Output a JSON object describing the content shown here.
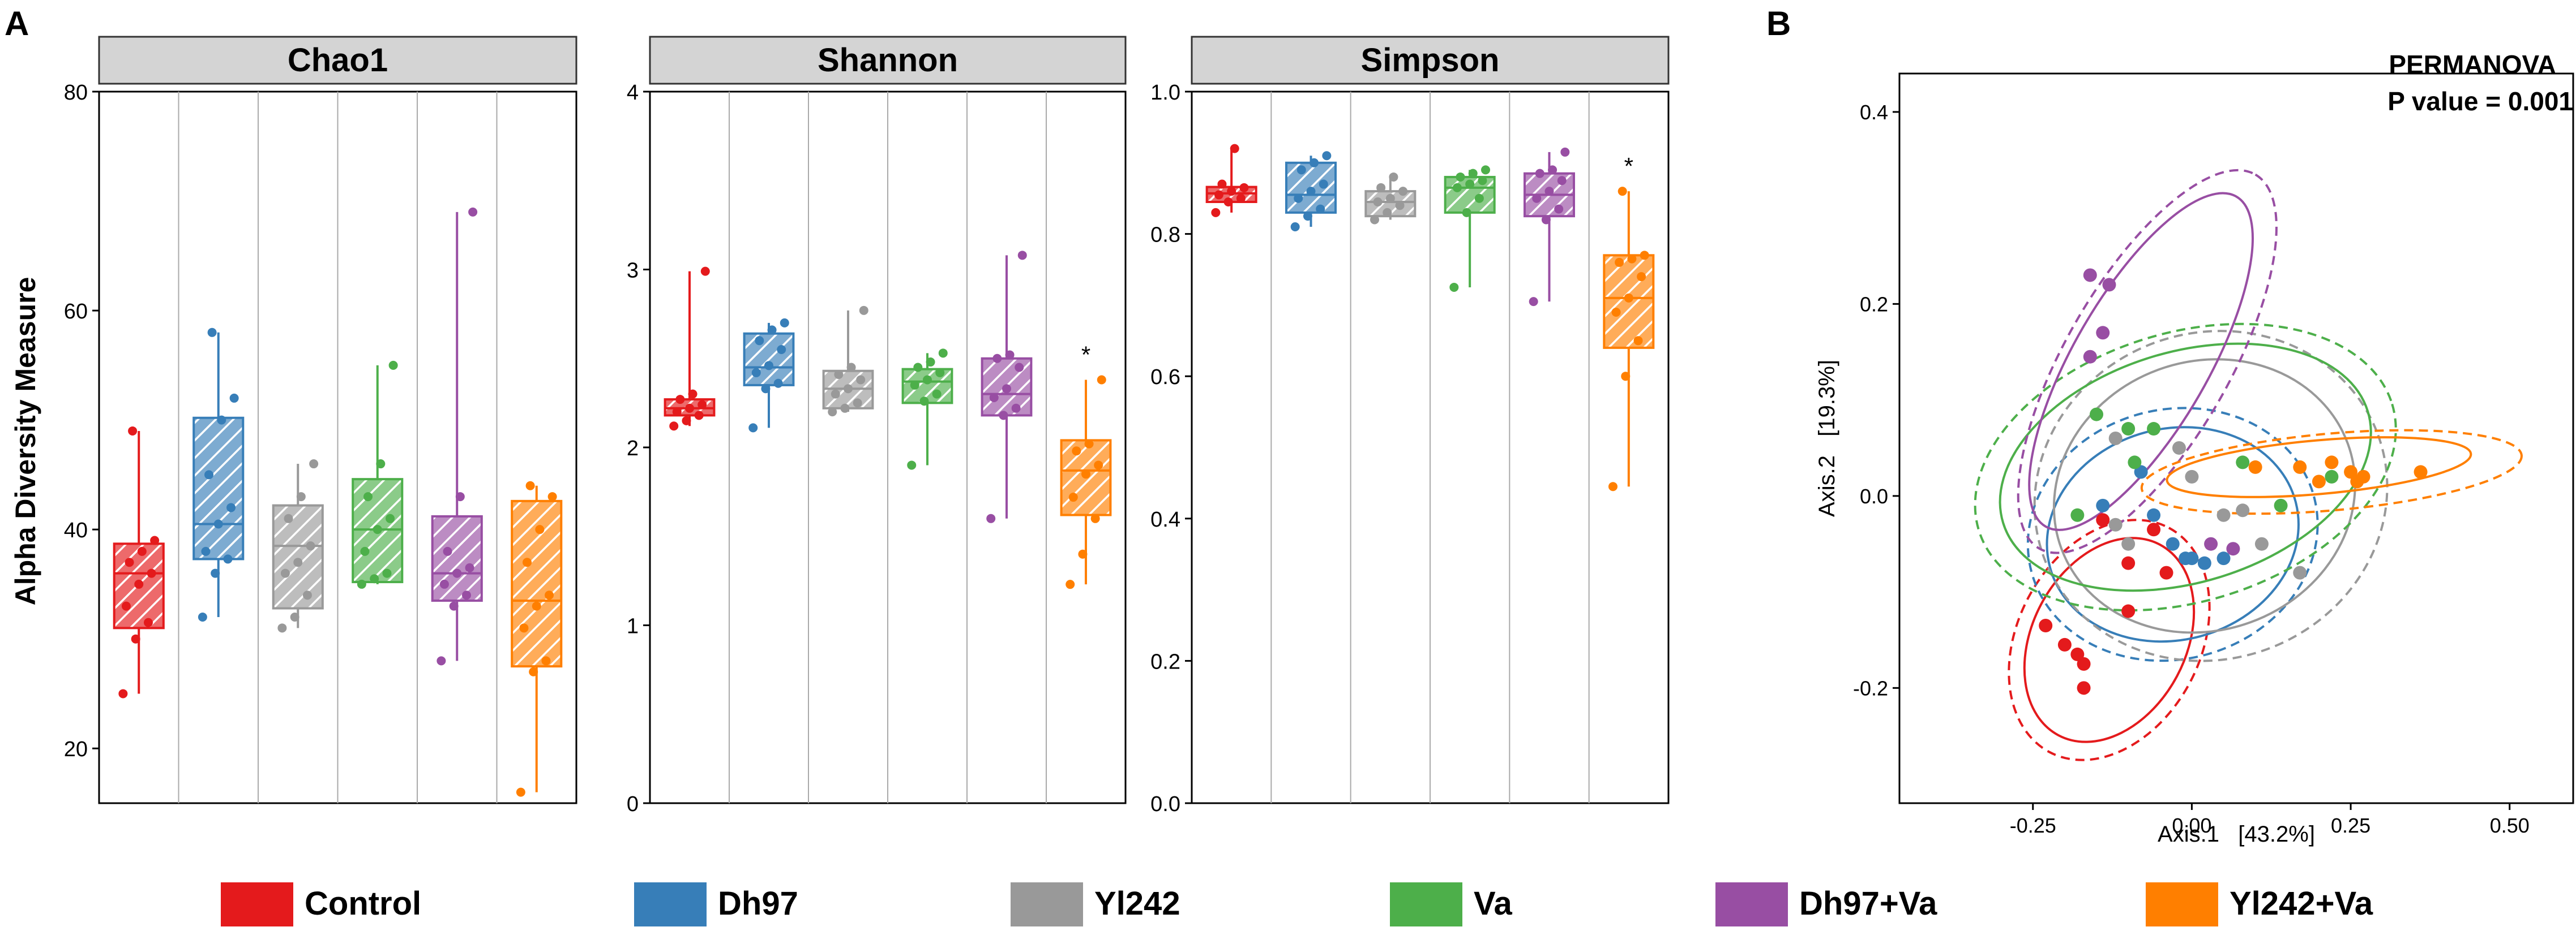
{
  "chart_data": [
    {
      "type": "box",
      "panel_label": "A",
      "title": "Chao1",
      "ylabel": "Alpha Diversity Measure",
      "ylim": [
        15,
        80
      ],
      "yticks": [
        20,
        40,
        60,
        80
      ],
      "groups": [
        {
          "name": "Control",
          "min": 25,
          "q1": 31,
          "median": 36,
          "q3": 38.7,
          "max": 49,
          "points": [
            25,
            30,
            31.5,
            33,
            35,
            36,
            37,
            38,
            39,
            49
          ]
        },
        {
          "name": "Dh97",
          "min": 32,
          "q1": 37.3,
          "median": 40.5,
          "q3": 50.2,
          "max": 58,
          "points": [
            32,
            36,
            37.3,
            38,
            40.5,
            42,
            45,
            50,
            52,
            58
          ]
        },
        {
          "name": "Yl242",
          "min": 31,
          "q1": 32.8,
          "median": 38.5,
          "q3": 42.2,
          "max": 46,
          "points": [
            31,
            32,
            34,
            36,
            37,
            38.5,
            41,
            43,
            46
          ]
        },
        {
          "name": "Va",
          "min": 35,
          "q1": 35.2,
          "median": 40,
          "q3": 44.6,
          "max": 55,
          "points": [
            35,
            35.5,
            36,
            38,
            40,
            41,
            43,
            46,
            55
          ]
        },
        {
          "name": "Dh97+Va",
          "min": 28,
          "q1": 33.5,
          "median": 36,
          "q3": 41.2,
          "max": 69,
          "points": [
            28,
            33,
            34,
            35,
            36,
            36.5,
            38,
            43,
            69
          ]
        },
        {
          "name": "Yl242+Va",
          "min": 16,
          "q1": 27.5,
          "median": 33.5,
          "q3": 42.6,
          "max": 44,
          "points": [
            16,
            27,
            28,
            31,
            33,
            34,
            37,
            40,
            43,
            44
          ]
        }
      ]
    },
    {
      "type": "box",
      "title": "Shannon",
      "ylim": [
        0,
        4
      ],
      "yticks": [
        0,
        1,
        2,
        3,
        4
      ],
      "groups": [
        {
          "name": "Control",
          "min": 2.12,
          "q1": 2.18,
          "median": 2.22,
          "q3": 2.27,
          "max": 2.99,
          "points": [
            2.12,
            2.15,
            2.18,
            2.2,
            2.22,
            2.24,
            2.27,
            2.3,
            2.99
          ]
        },
        {
          "name": "Dh97",
          "min": 2.11,
          "q1": 2.35,
          "median": 2.45,
          "q3": 2.64,
          "max": 2.7,
          "points": [
            2.11,
            2.33,
            2.36,
            2.42,
            2.46,
            2.55,
            2.6,
            2.66,
            2.7
          ]
        },
        {
          "name": "Yl242",
          "min": 2.2,
          "q1": 2.22,
          "median": 2.33,
          "q3": 2.43,
          "max": 2.77,
          "points": [
            2.2,
            2.22,
            2.25,
            2.3,
            2.33,
            2.38,
            2.41,
            2.45,
            2.77
          ]
        },
        {
          "name": "Va",
          "min": 1.9,
          "q1": 2.25,
          "median": 2.37,
          "q3": 2.44,
          "max": 2.53,
          "points": [
            1.9,
            2.26,
            2.3,
            2.35,
            2.38,
            2.42,
            2.45,
            2.48,
            2.53
          ]
        },
        {
          "name": "Dh97+Va",
          "min": 1.6,
          "q1": 2.18,
          "median": 2.3,
          "q3": 2.5,
          "max": 3.08,
          "points": [
            1.6,
            2.18,
            2.22,
            2.28,
            2.33,
            2.45,
            2.5,
            2.52,
            3.08
          ]
        },
        {
          "name": "Yl242+Va",
          "min": 1.23,
          "q1": 1.62,
          "median": 1.87,
          "q3": 2.04,
          "max": 2.38,
          "points": [
            1.23,
            1.4,
            1.6,
            1.72,
            1.85,
            1.9,
            1.98,
            2.02,
            2.38
          ],
          "annotation": "*"
        }
      ]
    },
    {
      "type": "box",
      "title": "Simpson",
      "ylim": [
        0,
        1
      ],
      "yticks": [
        0.0,
        0.2,
        0.4,
        0.6,
        0.8,
        1.0
      ],
      "ytick_labels": [
        "0.0",
        "0.2",
        "0.4",
        "0.6",
        "0.8",
        "1.0"
      ],
      "groups": [
        {
          "name": "Control",
          "min": 0.83,
          "q1": 0.845,
          "median": 0.857,
          "q3": 0.866,
          "max": 0.92,
          "points": [
            0.83,
            0.845,
            0.85,
            0.855,
            0.86,
            0.865,
            0.87,
            0.92
          ]
        },
        {
          "name": "Dh97",
          "min": 0.81,
          "q1": 0.83,
          "median": 0.855,
          "q3": 0.9,
          "max": 0.91,
          "points": [
            0.81,
            0.825,
            0.835,
            0.85,
            0.86,
            0.87,
            0.89,
            0.9,
            0.91
          ]
        },
        {
          "name": "Yl242",
          "min": 0.82,
          "q1": 0.825,
          "median": 0.845,
          "q3": 0.86,
          "max": 0.88,
          "points": [
            0.82,
            0.83,
            0.84,
            0.845,
            0.85,
            0.86,
            0.865,
            0.88
          ]
        },
        {
          "name": "Va",
          "min": 0.725,
          "q1": 0.83,
          "median": 0.865,
          "q3": 0.88,
          "max": 0.89,
          "points": [
            0.725,
            0.83,
            0.85,
            0.865,
            0.87,
            0.875,
            0.88,
            0.885,
            0.89
          ]
        },
        {
          "name": "Dh97+Va",
          "min": 0.705,
          "q1": 0.825,
          "median": 0.855,
          "q3": 0.885,
          "max": 0.915,
          "points": [
            0.705,
            0.82,
            0.835,
            0.85,
            0.86,
            0.875,
            0.885,
            0.89,
            0.915
          ]
        },
        {
          "name": "Yl242+Va",
          "min": 0.445,
          "q1": 0.64,
          "median": 0.71,
          "q3": 0.77,
          "max": 0.86,
          "points": [
            0.445,
            0.6,
            0.65,
            0.69,
            0.71,
            0.74,
            0.76,
            0.765,
            0.77,
            0.86
          ],
          "annotation": "*"
        }
      ]
    },
    {
      "type": "scatter",
      "panel_label": "B",
      "xlabel": "Axis.1   [43.2%]",
      "ylabel": "Axis.2   [19.3%]",
      "xlim": [
        -0.46,
        0.6
      ],
      "ylim": [
        -0.32,
        0.44
      ],
      "xticks": [
        -0.25,
        0.0,
        0.25,
        0.5
      ],
      "xtick_labels": [
        "-0.25",
        "0.00",
        "0.25",
        "0.50"
      ],
      "yticks": [
        -0.2,
        0.0,
        0.2,
        0.4
      ],
      "ytick_labels": [
        "-0.2",
        "0.0",
        "0.2",
        "0.4"
      ],
      "annotation": "PERMANOVA",
      "annotation2": "P value = 0.001",
      "series": [
        {
          "name": "Control",
          "points": [
            [
              -0.23,
              -0.135
            ],
            [
              -0.2,
              -0.155
            ],
            [
              -0.18,
              -0.165
            ],
            [
              -0.17,
              -0.2
            ],
            [
              -0.17,
              -0.175
            ],
            [
              -0.1,
              -0.12
            ],
            [
              -0.14,
              -0.025
            ],
            [
              -0.1,
              -0.07
            ],
            [
              -0.04,
              -0.08
            ],
            [
              -0.06,
              -0.035
            ]
          ],
          "ellipse": {
            "cx": -0.13,
            "cy": -0.15,
            "rx": 0.17,
            "ry": 0.08,
            "angle": -62
          },
          "ellipse_dash": {
            "cx": -0.13,
            "cy": -0.15,
            "rx": 0.2,
            "ry": 0.095,
            "angle": -62
          }
        },
        {
          "name": "Dh97",
          "points": [
            [
              -0.14,
              -0.01
            ],
            [
              -0.08,
              0.025
            ],
            [
              -0.06,
              -0.02
            ],
            [
              -0.01,
              -0.065
            ],
            [
              0.0,
              -0.065
            ],
            [
              0.02,
              -0.07
            ],
            [
              -0.03,
              -0.05
            ],
            [
              0.05,
              -0.065
            ]
          ],
          "ellipse": {
            "cx": -0.03,
            "cy": -0.04,
            "rx": 0.2,
            "ry": 0.11,
            "angle": -15
          },
          "ellipse_dash": {
            "cx": -0.03,
            "cy": -0.04,
            "rx": 0.23,
            "ry": 0.13,
            "angle": -15
          }
        },
        {
          "name": "Yl242",
          "points": [
            [
              -0.12,
              0.06
            ],
            [
              -0.02,
              0.05
            ],
            [
              0.0,
              0.02
            ],
            [
              0.05,
              -0.02
            ],
            [
              0.08,
              -0.015
            ],
            [
              -0.1,
              -0.05
            ],
            [
              0.11,
              -0.05
            ],
            [
              0.17,
              -0.08
            ],
            [
              -0.12,
              -0.03
            ]
          ],
          "ellipse": {
            "cx": 0.02,
            "cy": 0.0,
            "rx": 0.24,
            "ry": 0.14,
            "angle": -20
          },
          "ellipse_dash": {
            "cx": 0.03,
            "cy": 0.0,
            "rx": 0.28,
            "ry": 0.17,
            "angle": -20
          }
        },
        {
          "name": "Va",
          "points": [
            [
              -0.18,
              -0.02
            ],
            [
              -0.15,
              0.085
            ],
            [
              -0.1,
              0.07
            ],
            [
              -0.06,
              0.07
            ],
            [
              0.08,
              0.035
            ],
            [
              0.14,
              -0.01
            ],
            [
              -0.09,
              0.035
            ],
            [
              0.22,
              0.02
            ]
          ],
          "ellipse": {
            "cx": -0.01,
            "cy": 0.03,
            "rx": 0.3,
            "ry": 0.12,
            "angle": -17
          },
          "ellipse_dash": {
            "cx": -0.01,
            "cy": 0.03,
            "rx": 0.34,
            "ry": 0.14,
            "angle": -17
          }
        },
        {
          "name": "Dh97+Va",
          "points": [
            [
              -0.16,
              0.23
            ],
            [
              -0.13,
              0.22
            ],
            [
              -0.14,
              0.17
            ],
            [
              -0.16,
              0.145
            ],
            [
              0.03,
              -0.05
            ],
            [
              0.065,
              -0.055
            ]
          ],
          "ellipse": {
            "cx": -0.08,
            "cy": 0.14,
            "rx": 0.3,
            "ry": 0.07,
            "angle": -60
          },
          "ellipse_dash": {
            "cx": -0.07,
            "cy": 0.14,
            "rx": 0.34,
            "ry": 0.085,
            "angle": -60
          }
        },
        {
          "name": "Yl242+Va",
          "points": [
            [
              0.1,
              0.03
            ],
            [
              0.17,
              0.03
            ],
            [
              0.22,
              0.035
            ],
            [
              0.25,
              0.025
            ],
            [
              0.2,
              0.015
            ],
            [
              0.26,
              0.015
            ],
            [
              0.27,
              0.02
            ],
            [
              0.36,
              0.025
            ]
          ],
          "ellipse": {
            "cx": 0.2,
            "cy": 0.03,
            "rx": 0.24,
            "ry": 0.028,
            "angle": -5
          },
          "ellipse_dash": {
            "cx": 0.22,
            "cy": 0.025,
            "rx": 0.3,
            "ry": 0.04,
            "angle": -5
          }
        }
      ]
    }
  ],
  "legend": [
    {
      "label": "Control",
      "color": "#e41a1c"
    },
    {
      "label": "Dh97",
      "color": "#377eb8"
    },
    {
      "label": "Yl242",
      "color": "#999999"
    },
    {
      "label": "Va",
      "color": "#4daf4a"
    },
    {
      "label": "Dh97+Va",
      "color": "#984ea3"
    },
    {
      "label": "Yl242+Va",
      "color": "#ff7f00"
    }
  ]
}
